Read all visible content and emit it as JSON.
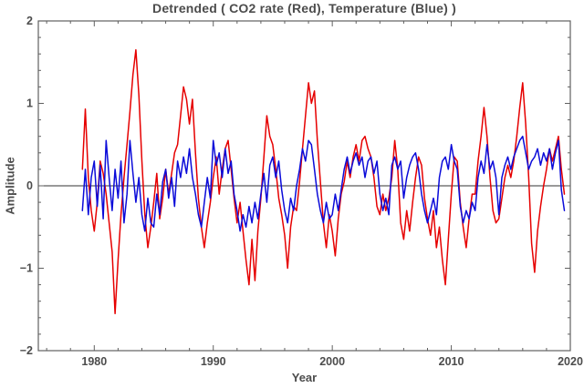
{
  "chart_data": {
    "type": "line",
    "title": "Detrended ( CO2 rate (Red), Temperature (Blue) )",
    "xlabel": "Year",
    "ylabel": "Amplitude",
    "xlim": [
      1975.3,
      2020
    ],
    "ylim": [
      -2,
      2
    ],
    "grid": false,
    "legend": "in title",
    "frame_color": "#606060",
    "text_color": "#4c4c4c",
    "zero_line_color": "#333333",
    "x_axis": {
      "major_ticks": [
        {
          "value": 1980,
          "label": "1980"
        },
        {
          "value": 1990,
          "label": "1990"
        },
        {
          "value": 2000,
          "label": "2000"
        },
        {
          "value": 2010,
          "label": "2010"
        },
        {
          "value": 2020,
          "label": "2020"
        }
      ],
      "minor_step": 2
    },
    "y_axis": {
      "major_ticks": [
        {
          "value": -2,
          "label": "−2"
        },
        {
          "value": -1,
          "label": "−1"
        },
        {
          "value": 0,
          "label": "0"
        },
        {
          "value": 1,
          "label": "1"
        },
        {
          "value": 2,
          "label": "2"
        }
      ],
      "minor_step": 0.2
    },
    "series": [
      {
        "name": "CO2 rate",
        "color": "#e60000",
        "x_start": 1979.0,
        "dt": 0.25,
        "values": [
          0.2,
          0.93,
          0.1,
          -0.3,
          -0.55,
          -0.2,
          0.3,
          0.15,
          -0.1,
          -0.45,
          -0.8,
          -1.55,
          -0.9,
          -0.35,
          0.1,
          0.5,
          0.9,
          1.35,
          1.65,
          1.1,
          0.3,
          -0.35,
          -0.75,
          -0.5,
          -0.2,
          0.15,
          -0.4,
          -0.15,
          0.2,
          -0.1,
          0.15,
          0.4,
          0.5,
          0.85,
          1.2,
          1.05,
          0.75,
          1.05,
          0.4,
          -0.15,
          -0.5,
          -0.75,
          -0.45,
          -0.2,
          0.1,
          0.35,
          -0.1,
          0.2,
          0.45,
          0.55,
          0.2,
          -0.15,
          -0.45,
          -0.2,
          -0.55,
          -0.9,
          -1.2,
          -0.65,
          -1.15,
          -0.55,
          -0.15,
          0.35,
          0.85,
          0.6,
          0.5,
          0.2,
          -0.15,
          -0.35,
          -0.6,
          -1.0,
          -0.5,
          -0.25,
          -0.3,
          0.05,
          0.45,
          0.85,
          1.25,
          1.0,
          1.15,
          0.55,
          0.05,
          -0.45,
          -0.75,
          -0.35,
          -0.55,
          -0.85,
          -0.4,
          -0.1,
          0.05,
          0.3,
          0.1,
          0.35,
          0.5,
          0.3,
          0.55,
          0.6,
          0.45,
          0.35,
          0.1,
          -0.25,
          -0.35,
          -0.1,
          -0.3,
          -0.15,
          0.1,
          0.55,
          0.2,
          -0.45,
          -0.65,
          -0.3,
          -0.55,
          -0.2,
          0.1,
          0.35,
          0.25,
          -0.15,
          -0.4,
          -0.6,
          -0.3,
          -0.75,
          -0.5,
          -0.9,
          -1.2,
          -0.65,
          -0.1,
          0.35,
          0.3,
          -0.2,
          -0.5,
          -0.75,
          -0.4,
          -0.1,
          -0.1,
          0.3,
          0.6,
          0.95,
          0.6,
          0.1,
          -0.3,
          -0.45,
          -0.4,
          -0.15,
          0.1,
          0.25,
          0.1,
          0.3,
          0.6,
          0.95,
          1.25,
          0.75,
          0.1,
          -0.7,
          -1.05,
          -0.55,
          -0.25,
          0.0,
          0.2,
          0.45,
          0.3,
          0.45,
          0.6,
          0.2,
          -0.1
        ]
      },
      {
        "name": "Temperature",
        "color": "#0b0bd9",
        "x_start": 1979.0,
        "dt": 0.25,
        "values": [
          -0.3,
          0.2,
          -0.35,
          0.1,
          0.3,
          -0.25,
          0.25,
          -0.4,
          0.55,
          0.1,
          -0.3,
          0.2,
          -0.15,
          0.3,
          -0.45,
          -0.1,
          0.55,
          0.15,
          -0.2,
          0.1,
          -0.35,
          -0.55,
          -0.15,
          -0.45,
          -0.5,
          -0.1,
          -0.35,
          0.05,
          0.2,
          -0.15,
          0.1,
          -0.25,
          0.3,
          0.1,
          0.35,
          0.15,
          0.45,
          0.1,
          -0.1,
          -0.35,
          -0.5,
          -0.2,
          0.1,
          -0.15,
          0.55,
          0.25,
          0.4,
          0.1,
          0.45,
          0.15,
          0.3,
          -0.1,
          -0.3,
          -0.55,
          -0.35,
          -0.5,
          -0.25,
          -0.45,
          -0.2,
          -0.4,
          -0.1,
          0.15,
          -0.2,
          0.25,
          0.35,
          0.1,
          0.3,
          -0.05,
          -0.3,
          -0.45,
          -0.15,
          -0.3,
          0.0,
          0.2,
          0.45,
          0.3,
          0.55,
          0.5,
          0.2,
          -0.1,
          -0.3,
          -0.45,
          -0.2,
          -0.4,
          -0.35,
          -0.1,
          -0.3,
          -0.05,
          0.2,
          0.35,
          0.15,
          0.3,
          0.4,
          0.25,
          0.35,
          0.1,
          0.3,
          0.35,
          0.15,
          0.3,
          -0.1,
          -0.3,
          -0.15,
          -0.35,
          0.25,
          0.35,
          0.2,
          0.3,
          -0.15,
          0.1,
          0.25,
          0.35,
          0.4,
          0.2,
          -0.1,
          -0.3,
          -0.45,
          -0.3,
          -0.15,
          -0.35,
          0.1,
          0.3,
          0.35,
          0.2,
          0.5,
          0.3,
          0.2,
          -0.25,
          -0.45,
          -0.3,
          -0.4,
          -0.2,
          -0.3,
          0.1,
          0.3,
          0.15,
          0.5,
          0.2,
          0.3,
          0.1,
          -0.35,
          0.1,
          0.25,
          0.35,
          0.2,
          0.35,
          0.45,
          0.55,
          0.6,
          0.4,
          0.2,
          0.3,
          0.35,
          0.45,
          0.25,
          0.4,
          0.3,
          0.45,
          0.2,
          0.4,
          0.55,
          -0.05,
          -0.3
        ]
      }
    ]
  }
}
